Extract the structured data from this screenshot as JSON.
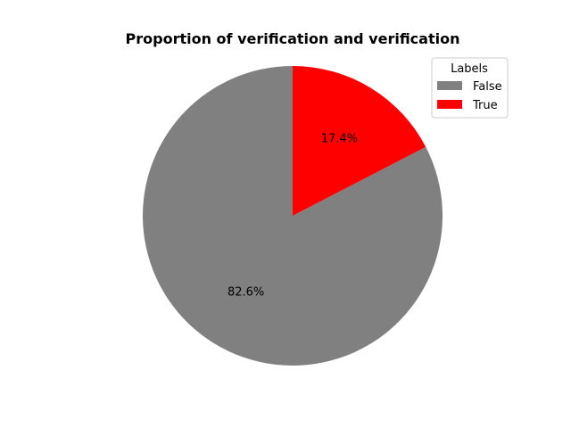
{
  "chart_data": {
    "type": "pie",
    "title": "Proportion of verification and verification",
    "categories": [
      "False",
      "True"
    ],
    "values": [
      82.6,
      17.4
    ],
    "slice_labels": [
      "82.6%",
      "17.4%"
    ],
    "colors": [
      "#808080",
      "#ff0000"
    ],
    "start_angle_deg": 90,
    "direction": "counterclockwise",
    "legend": {
      "title": "Labels",
      "placement": "upper right",
      "entries": [
        "False",
        "True"
      ]
    }
  }
}
